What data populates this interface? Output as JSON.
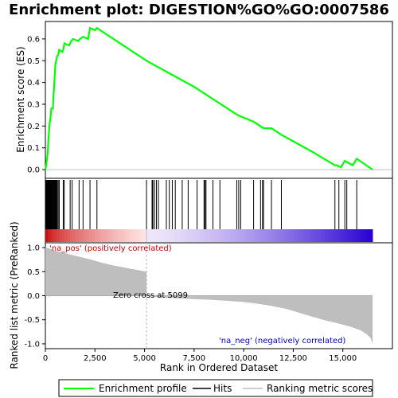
{
  "title": "Enrichment plot: DIGESTION%GO%GO:0007586",
  "chart_data": {
    "type": "line",
    "title": "Enrichment plot: DIGESTION%GO%GO:0007586",
    "xlabel": "Rank in Ordered Dataset",
    "ylabel_top": "Enrichment score (ES)",
    "ylabel_bottom": "Ranked list metric (PreRanked)",
    "xlim": [
      0,
      17500
    ],
    "x_ticks": [
      0,
      2500,
      5000,
      7500,
      10000,
      12500,
      15000
    ],
    "x_tick_labels": [
      "0",
      "2,500",
      "5,000",
      "7,500",
      "10,000",
      "12,500",
      "15,000"
    ],
    "es_ylim": [
      -0.04,
      0.68
    ],
    "es_ticks": [
      0.0,
      0.1,
      0.2,
      0.3,
      0.4,
      0.5,
      0.6
    ],
    "es_tick_labels": [
      "0.0",
      "0.1",
      "0.2",
      "0.3",
      "0.4",
      "0.5",
      "0.6"
    ],
    "metric_ylim": [
      -1.1,
      1.1
    ],
    "metric_ticks": [
      1.0,
      0.5,
      0.0,
      -0.5,
      -1.0
    ],
    "metric_tick_labels": [
      "1.0",
      "0.5",
      "0.0",
      "-0.5",
      "-1.0"
    ],
    "enrichment_profile": {
      "name": "Enrichment profile",
      "color": "#00ff00",
      "points": [
        [
          0,
          0
        ],
        [
          40,
          0.02
        ],
        [
          80,
          0.05
        ],
        [
          120,
          0.08
        ],
        [
          150,
          0.13
        ],
        [
          180,
          0.17
        ],
        [
          210,
          0.21
        ],
        [
          260,
          0.24
        ],
        [
          300,
          0.28
        ],
        [
          380,
          0.28
        ],
        [
          400,
          0.33
        ],
        [
          440,
          0.38
        ],
        [
          470,
          0.43
        ],
        [
          500,
          0.48
        ],
        [
          540,
          0.5
        ],
        [
          600,
          0.52
        ],
        [
          660,
          0.53
        ],
        [
          700,
          0.55
        ],
        [
          860,
          0.54
        ],
        [
          900,
          0.55
        ],
        [
          960,
          0.58
        ],
        [
          1200,
          0.57
        ],
        [
          1300,
          0.59
        ],
        [
          1400,
          0.6
        ],
        [
          1650,
          0.59
        ],
        [
          1750,
          0.6
        ],
        [
          1900,
          0.61
        ],
        [
          2150,
          0.6
        ],
        [
          2250,
          0.65
        ],
        [
          2500,
          0.64
        ],
        [
          2600,
          0.65
        ],
        [
          5100,
          0.5
        ],
        [
          7500,
          0.38
        ],
        [
          9700,
          0.25
        ],
        [
          10500,
          0.22
        ],
        [
          11000,
          0.19
        ],
        [
          11400,
          0.19
        ],
        [
          11900,
          0.16
        ],
        [
          12500,
          0.13
        ],
        [
          13500,
          0.08
        ],
        [
          14600,
          0.02
        ],
        [
          14700,
          0.02
        ],
        [
          14900,
          0.01
        ],
        [
          15100,
          0.04
        ],
        [
          15500,
          0.02
        ],
        [
          15700,
          0.05
        ],
        [
          16500,
          0
        ]
      ]
    },
    "hits": [
      30,
      60,
      80,
      100,
      120,
      140,
      160,
      190,
      220,
      250,
      280,
      300,
      330,
      350,
      380,
      400,
      420,
      450,
      470,
      500,
      530,
      560,
      600,
      650,
      700,
      900,
      950,
      1250,
      1350,
      1700,
      1900,
      2250,
      2600,
      5100,
      5380,
      5420,
      5500,
      5600,
      5700,
      6100,
      6250,
      6400,
      6550,
      6900,
      7200,
      7650,
      8000,
      8050,
      8100,
      8450,
      8800,
      9650,
      9750,
      9850,
      10500,
      10850,
      10950,
      11000,
      11400,
      11900,
      14600,
      14800,
      15100,
      15200,
      15700
    ],
    "metric_profile": {
      "name": "Ranking metric scores",
      "color": "#bebebe",
      "points": [
        [
          0,
          1.0
        ],
        [
          150,
          0.99
        ],
        [
          400,
          0.95
        ],
        [
          600,
          0.92
        ],
        [
          900,
          0.9
        ],
        [
          1200,
          0.86
        ],
        [
          1600,
          0.82
        ],
        [
          2000,
          0.78
        ],
        [
          2400,
          0.74
        ],
        [
          2800,
          0.69
        ],
        [
          3300,
          0.64
        ],
        [
          3800,
          0.6
        ],
        [
          4300,
          0.56
        ],
        [
          4700,
          0.53
        ],
        [
          5099,
          0.5
        ],
        [
          5099,
          0
        ],
        [
          5100,
          -0.01
        ],
        [
          6000,
          -0.04
        ],
        [
          7000,
          -0.06
        ],
        [
          8000,
          -0.08
        ],
        [
          8500,
          -0.09
        ],
        [
          9300,
          -0.11
        ],
        [
          10000,
          -0.13
        ],
        [
          10600,
          -0.16
        ],
        [
          11100,
          -0.19
        ],
        [
          11600,
          -0.23
        ],
        [
          12100,
          -0.27
        ],
        [
          12600,
          -0.33
        ],
        [
          13000,
          -0.38
        ],
        [
          13500,
          -0.44
        ],
        [
          14000,
          -0.5
        ],
        [
          14500,
          -0.55
        ],
        [
          15000,
          -0.6
        ],
        [
          15500,
          -0.66
        ],
        [
          15900,
          -0.72
        ],
        [
          16200,
          -0.8
        ],
        [
          16400,
          -0.88
        ],
        [
          16500,
          -1.0
        ]
      ]
    },
    "labels": {
      "na_pos": "'na_pos' (positively correlated)",
      "na_neg": "'na_neg' (negatively correlated)",
      "zero_cross": "Zero cross at 5099"
    },
    "zero_cross": 5099,
    "legend": {
      "placement": "bottom",
      "entries": [
        {
          "label": "Enrichment profile",
          "color": "#00ff00"
        },
        {
          "label": "Hits",
          "color": "#000000"
        },
        {
          "label": "Ranking metric scores",
          "color": "#bebebe"
        }
      ]
    }
  }
}
